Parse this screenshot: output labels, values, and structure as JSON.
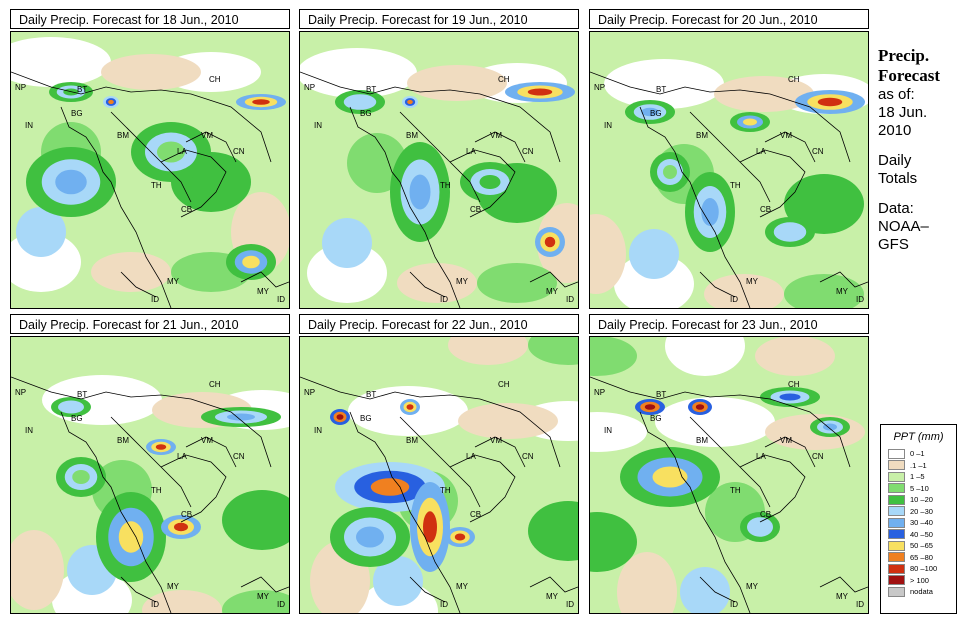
{
  "panels": [
    {
      "title": "Daily Precip. Forecast for  18 Jun., 2010"
    },
    {
      "title": "Daily Precip. Forecast for  19 Jun., 2010"
    },
    {
      "title": "Daily Precip. Forecast for  20 Jun., 2010"
    },
    {
      "title": "Daily Precip. Forecast for  21 Jun., 2010"
    },
    {
      "title": "Daily Precip. Forecast for  22 Jun., 2010"
    },
    {
      "title": "Daily Precip. Forecast for  23 Jun., 2010"
    }
  ],
  "map_labels": {
    "NP": "NP",
    "BT": "BT",
    "BG": "BG",
    "IN": "IN",
    "BM": "BM",
    "CH": "CH",
    "VM": "VM",
    "LA": "LA",
    "CN": "CN",
    "TH": "TH",
    "CB": "CB",
    "MY": "MY",
    "ID": "ID"
  },
  "side": {
    "title_line1": "Precip.",
    "title_line2": "Forecast",
    "asof": "as of:",
    "date1": "18 Jun.",
    "date2": "2010",
    "daily1": "Daily",
    "daily2": "Totals",
    "data1": "Data:",
    "data2": "NOAA–",
    "data3": "GFS"
  },
  "legend": {
    "title": "PPT (mm)",
    "items": [
      {
        "label": "0 –1",
        "color": "#ffffff"
      },
      {
        "label": ".1 –1",
        "color": "#f0dcc0"
      },
      {
        "label": "1 –5",
        "color": "#c8f0a8"
      },
      {
        "label": "5 –10",
        "color": "#80dc70"
      },
      {
        "label": "10 –20",
        "color": "#40c040"
      },
      {
        "label": "20 –30",
        "color": "#a8d8f8"
      },
      {
        "label": "30 –40",
        "color": "#70b0f0"
      },
      {
        "label": "40 –50",
        "color": "#2860e0"
      },
      {
        "label": "50 –65",
        "color": "#f8e060"
      },
      {
        "label": "65 –80",
        "color": "#f08020"
      },
      {
        "label": "80 –100",
        "color": "#d03010"
      },
      {
        "label": "> 100",
        "color": "#a01010"
      },
      {
        "label": "nodata",
        "color": "#c8c8c8"
      }
    ]
  }
}
